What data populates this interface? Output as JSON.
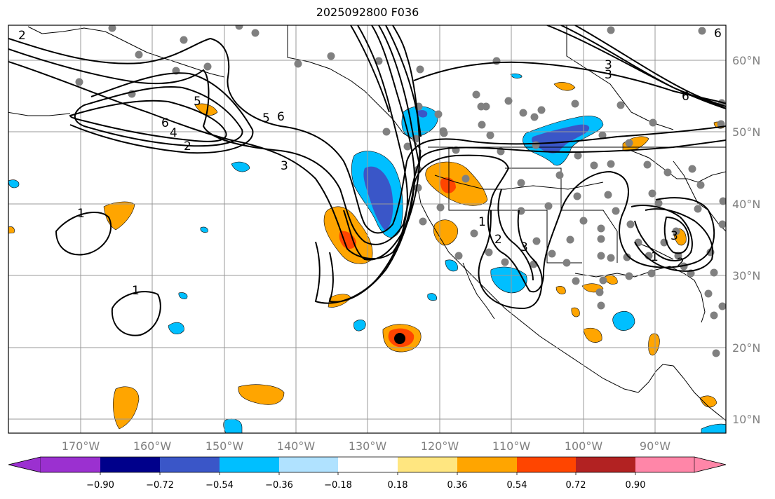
{
  "title": "2025092800 F036",
  "map": {
    "lon_ticks": [
      "170°W",
      "160°W",
      "150°W",
      "140°W",
      "130°W",
      "120°W",
      "110°W",
      "100°W",
      "90°W"
    ],
    "lat_ticks": [
      "10°N",
      "20°N",
      "30°N",
      "40°N",
      "50°N",
      "60°N"
    ],
    "contour_labels": [
      "2",
      "5",
      "6",
      "4",
      "6",
      "5",
      "6",
      "2",
      "3",
      "1",
      "1",
      "3",
      "6",
      "3",
      "1",
      "2",
      "3",
      "1",
      "2",
      "3"
    ]
  },
  "colorbar": {
    "labels": [
      "−0.90",
      "−0.72",
      "−0.54",
      "−0.36",
      "−0.18",
      "0.18",
      "0.36",
      "0.54",
      "0.72",
      "0.90"
    ],
    "colors": [
      "#9b30d0",
      "#00008b",
      "#3a56c8",
      "#00bfff",
      "#b0e2ff",
      "#ffffff",
      "#ffe680",
      "#ffa500",
      "#ff4500",
      "#b22222",
      "#ff86a8"
    ]
  }
}
